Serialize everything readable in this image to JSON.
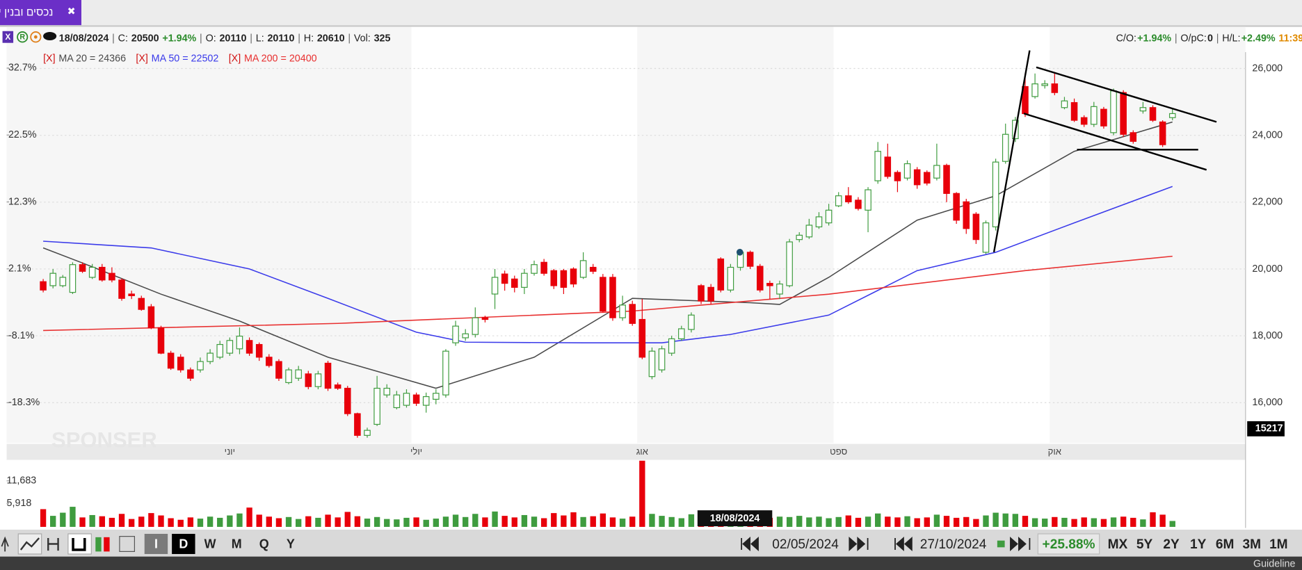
{
  "tab": {
    "title": "נכסים ובנין י",
    "close": "✖"
  },
  "info": {
    "icons": [
      "X",
      "R"
    ],
    "date": "18/08/2024",
    "separator": "|",
    "items": [
      {
        "label": "C:",
        "value": "20500",
        "change": "+1.94%"
      },
      {
        "label": "O:",
        "value": "20110"
      },
      {
        "label": "L:",
        "value": "20110"
      },
      {
        "label": "H:",
        "value": "20610"
      },
      {
        "label": "Vol:",
        "value": "325"
      }
    ],
    "stats": [
      {
        "label": "C/O:",
        "value": "+1.94%"
      },
      {
        "label": "O/pC:",
        "value": "0"
      },
      {
        "label": "H/L:",
        "value": "+2.49%"
      }
    ],
    "time": "11:39"
  },
  "chart_data": {
    "type": "candlestick",
    "legend_close": "[X]",
    "watermark": "SPONSER",
    "categories": [
      null,
      null,
      null,
      null,
      null,
      null,
      null,
      null,
      null,
      null,
      null,
      null,
      null,
      null,
      null,
      null,
      null,
      null,
      null,
      "יוני",
      null,
      null,
      null,
      null,
      null,
      null,
      null,
      null,
      null,
      null,
      null,
      null,
      null,
      null,
      null,
      null,
      null,
      null,
      "יולי",
      null,
      null,
      null,
      null,
      null,
      null,
      null,
      null,
      null,
      null,
      null,
      null,
      null,
      null,
      null,
      null,
      null,
      null,
      null,
      null,
      null,
      null,
      "אוג",
      null,
      null,
      null,
      null,
      null,
      null,
      null,
      null,
      null,
      null,
      null,
      null,
      null,
      null,
      null,
      null,
      null,
      null,
      null,
      "ספט",
      null,
      null,
      null,
      null,
      null,
      null,
      null,
      null,
      null,
      null,
      null,
      null,
      null,
      null,
      null,
      null,
      null,
      null,
      null,
      null,
      null,
      "אוק",
      null,
      null,
      null,
      null,
      null,
      null,
      null,
      null,
      null,
      null,
      null,
      null
    ],
    "up_color": "#3f9c3f",
    "down_color": "#e8000b",
    "open": [
      19620,
      19500,
      19500,
      19300,
      20130,
      19750,
      20050,
      19870,
      19670,
      19250,
      19120,
      18870,
      18240,
      17480,
      17360,
      16980,
      16980,
      17230,
      17360,
      17480,
      17610,
      17860,
      17740,
      17360,
      17230,
      16600,
      16730,
      16860,
      16480,
      17180,
      16530,
      16430,
      15670,
      15020,
      15350,
      16230,
      15850,
      15920,
      16230,
      15920,
      16100,
      16230,
      17790,
      17940,
      18040,
      18540,
      19250,
      19850,
      19700,
      19450,
      19870,
      20200,
      19950,
      19950,
      20000,
      19750,
      20050,
      19750,
      19750,
      18540,
      18940,
      18490,
      16780,
      16980,
      17480,
      17910,
      18190,
      19500,
      19450,
      20300,
      19370,
      20050,
      20500,
      20080,
      19570,
      19250,
      19500,
      20880,
      20960,
      21260,
      21380,
      21890,
      22190,
      22060,
      21760,
      22640,
      23350,
      22890,
      22720,
      22970,
      22890,
      22720,
      23100,
      22260,
      22010,
      21640,
      20500,
      21260,
      23220,
      23900,
      25460,
      25160,
      25490,
      25540,
      24830,
      24980,
      24530,
      24330,
      24780,
      24080,
      25280,
      24080,
      24730,
      24830,
      24400,
      24530
    ],
    "high": [
      19700,
      20000,
      19820,
      20200,
      20200,
      20150,
      20150,
      20050,
      19720,
      19350,
      19200,
      18950,
      18300,
      17550,
      17450,
      17050,
      17350,
      17600,
      17850,
      17950,
      18250,
      17950,
      17800,
      17450,
      17300,
      17050,
      17100,
      16950,
      16950,
      17250,
      16600,
      16500,
      15700,
      15250,
      16800,
      16550,
      16350,
      16400,
      16300,
      16300,
      16400,
      17600,
      18450,
      18200,
      18850,
      18600,
      20000,
      19950,
      19800,
      20000,
      20250,
      20300,
      20000,
      20000,
      20050,
      20500,
      20150,
      19850,
      19850,
      19200,
      19050,
      19100,
      17650,
      17700,
      18000,
      18300,
      18700,
      19550,
      19550,
      20350,
      20150,
      20600,
      20550,
      20150,
      19650,
      19650,
      20900,
      21100,
      21500,
      21700,
      21950,
      22300,
      22450,
      22150,
      22450,
      23800,
      23750,
      22950,
      23250,
      23050,
      22950,
      23750,
      23150,
      22300,
      22100,
      21700,
      21450,
      23300,
      24350,
      24550,
      25850,
      25850,
      25650,
      25850,
      25150,
      25100,
      24600,
      25000,
      24850,
      25400,
      25350,
      24150,
      25000,
      24900,
      24450,
      24800
    ],
    "low": [
      19300,
      19420,
      19450,
      19250,
      19880,
      19700,
      19620,
      19600,
      19050,
      19100,
      18750,
      18200,
      17450,
      16980,
      16900,
      16650,
      16900,
      17150,
      17300,
      17400,
      17450,
      17400,
      17250,
      17050,
      16650,
      16550,
      16650,
      16400,
      16400,
      16350,
      16380,
      15600,
      14950,
      14950,
      15300,
      16150,
      15800,
      15850,
      15900,
      15700,
      15950,
      16150,
      17700,
      17850,
      17950,
      18400,
      18800,
      19350,
      19300,
      19250,
      19800,
      19800,
      19400,
      19250,
      19450,
      19700,
      19850,
      18700,
      18450,
      18450,
      18300,
      17300,
      16700,
      16900,
      17400,
      17850,
      18100,
      18950,
      18950,
      19300,
      19300,
      19950,
      20000,
      19300,
      19100,
      19100,
      19450,
      20800,
      20900,
      21200,
      21300,
      21850,
      21950,
      21750,
      21100,
      22550,
      22700,
      22300,
      22650,
      22400,
      22500,
      22650,
      22000,
      21350,
      21050,
      20750,
      20450,
      21150,
      23150,
      23800,
      24550,
      25100,
      25400,
      25200,
      24780,
      24400,
      24250,
      24250,
      24200,
      24000,
      23950,
      23750,
      24650,
      24400,
      23650,
      24450
    ],
    "close": [
      19370,
      19870,
      19750,
      20130,
      19930,
      20050,
      19670,
      19670,
      19120,
      19200,
      18790,
      18240,
      17480,
      17030,
      16980,
      16730,
      17230,
      17480,
      17740,
      17860,
      17990,
      17480,
      17360,
      17110,
      16730,
      16980,
      16980,
      16480,
      16860,
      16430,
      16430,
      15670,
      15020,
      15170,
      16430,
      16430,
      16230,
      16280,
      15980,
      16180,
      16280,
      17540,
      18290,
      18060,
      18540,
      18490,
      19750,
      19570,
      19450,
      19870,
      20130,
      19870,
      19500,
      19450,
      19550,
      20250,
      19930,
      18740,
      18540,
      18920,
      18370,
      17360,
      17540,
      17610,
      17910,
      18210,
      18620,
      19040,
      19040,
      19370,
      20050,
      20500,
      20080,
      19370,
      19500,
      19550,
      20810,
      21010,
      21310,
      21560,
      21760,
      22190,
      22010,
      21810,
      22370,
      23520,
      22770,
      22640,
      23150,
      22520,
      22570,
      23100,
      22260,
      21460,
      21210,
      20880,
      21380,
      23200,
      24030,
      24450,
      24650,
      25540,
      25540,
      25280,
      25030,
      24450,
      24330,
      24860,
      24280,
      25330,
      24030,
      23820,
      24830,
      24450,
      23720,
      24650
    ],
    "series": [
      {
        "name": "MA 20 = 24366",
        "color": "#4a4a4a",
        "x": [
          0,
          4,
          12,
          20,
          29,
          40,
          50,
          60,
          72,
          75,
          80,
          89,
          97,
          105,
          115
        ],
        "values": [
          20630,
          20180,
          19245,
          18440,
          17360,
          16430,
          17360,
          19120,
          18990,
          18940,
          19750,
          21460,
          22190,
          23520,
          24400
        ]
      },
      {
        "name": "MA 50 = 22502",
        "color": "#3b3bea",
        "x": [
          0,
          11,
          21,
          29,
          38,
          43,
          55,
          63,
          70,
          80,
          89,
          97,
          105,
          115
        ],
        "values": [
          20830,
          20630,
          20000,
          19120,
          18110,
          17810,
          17790,
          17790,
          18040,
          18620,
          19950,
          20500,
          21380,
          22470
        ]
      },
      {
        "name": "MA 200 = 20400",
        "color": "#e83030",
        "x": [
          0,
          30,
          60,
          80,
          100,
          115
        ],
        "values": [
          18160,
          18370,
          18740,
          19245,
          19950,
          20380
        ]
      }
    ],
    "ylim": [
      14790,
      26490
    ],
    "yticks": [
      {
        "value": 16000,
        "label": "16,000"
      },
      {
        "value": 18000,
        "label": "18,000"
      },
      {
        "value": 20000,
        "label": "20,000"
      },
      {
        "value": 22000,
        "label": "22,000"
      },
      {
        "value": 24000,
        "label": "24,000"
      },
      {
        "value": 26000,
        "label": "26,000"
      }
    ],
    "y2lim": [
      -24.45,
      35.13
    ],
    "y2ticks": [
      {
        "value": -18.3,
        "label": "-18.3%"
      },
      {
        "value": -8.1,
        "label": "-8.1%"
      },
      {
        "value": 2.1,
        "label": "2.1%"
      },
      {
        "value": 12.3,
        "label": "12.3%"
      },
      {
        "value": 22.5,
        "label": "22.5%"
      },
      {
        "value": 32.7,
        "label": "32.7%"
      }
    ],
    "grid": true,
    "price_marker": 15217,
    "cursor_date": "18/08/2024",
    "volume": {
      "values": [
        4500,
        2800,
        3600,
        5100,
        2400,
        3000,
        2700,
        2300,
        3300,
        2000,
        2600,
        3500,
        2900,
        2200,
        1800,
        2400,
        2100,
        2600,
        2300,
        2900,
        3400,
        4900,
        3100,
        2600,
        2200,
        2500,
        2000,
        2700,
        2300,
        3100,
        2400,
        3800,
        2700,
        2100,
        2500,
        2000,
        1900,
        2300,
        2400,
        1800,
        2100,
        2600,
        3100,
        2500,
        3300,
        2400,
        3900,
        2800,
        2400,
        3000,
        2600,
        2200,
        3500,
        2900,
        3700,
        2500,
        2700,
        3400,
        2400,
        2100,
        2600,
        16800,
        3300,
        2800,
        2500,
        2200,
        3200,
        3000,
        2600,
        3400,
        2900,
        2700,
        2100,
        1900,
        2300,
        2600,
        2500,
        2800,
        2400,
        2600,
        2200,
        2500,
        2900,
        2300,
        2600,
        3400,
        2600,
        2400,
        2700,
        2200,
        2400,
        3100,
        2800,
        2300,
        2500,
        2000,
        2900,
        3600,
        3400,
        3300,
        2800,
        2200,
        2100,
        2500,
        2300,
        2000,
        2400,
        2200,
        2000,
        2400,
        2600,
        2300,
        1900,
        3700,
        3100,
        1500
      ],
      "ylim": [
        0,
        16800
      ],
      "yticks": [
        {
          "value": 5918,
          "label": "5,918"
        },
        {
          "value": 11683,
          "label": "11,683"
        }
      ]
    }
  },
  "toolbar": {
    "periods": [
      "I",
      "D",
      "W",
      "M",
      "Q",
      "Y"
    ],
    "from": "02/05/2024",
    "to": "27/10/2024",
    "change": "+25.88%",
    "ranges": [
      "MX",
      "5Y",
      "2Y",
      "1Y",
      "6M",
      "3M",
      "1M"
    ]
  },
  "footer": "Guideline"
}
